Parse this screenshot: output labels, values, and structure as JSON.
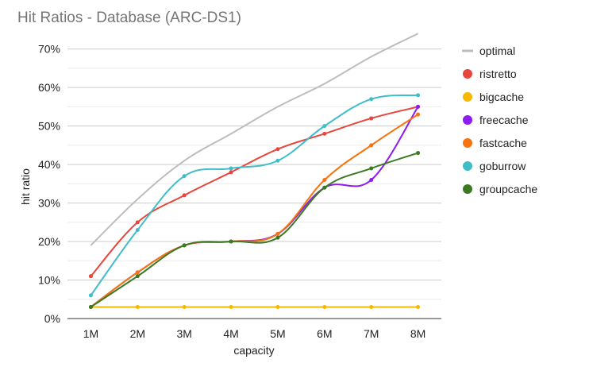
{
  "chart_data": {
    "type": "line",
    "title": "Hit Ratios - Database (ARC-DS1)",
    "xlabel": "capacity",
    "ylabel": "hit ratio",
    "categories": [
      "1M",
      "2M",
      "3M",
      "4M",
      "5M",
      "6M",
      "7M",
      "8M"
    ],
    "ylim": [
      0,
      72
    ],
    "yticks": [
      "0%",
      "10%",
      "20%",
      "30%",
      "40%",
      "50%",
      "60%",
      "70%"
    ],
    "ytick_values": [
      0,
      10,
      20,
      30,
      40,
      50,
      60,
      70
    ],
    "grid": true,
    "legend_position": "right",
    "series": [
      {
        "name": "optimal",
        "color": "#bdbdbd",
        "markers": false,
        "values": [
          19,
          31,
          41,
          48,
          55,
          61,
          68,
          74
        ]
      },
      {
        "name": "ristretto",
        "color": "#e8453c",
        "markers": true,
        "values": [
          11,
          25,
          32,
          38,
          44,
          48,
          52,
          55
        ]
      },
      {
        "name": "bigcache",
        "color": "#f6b900",
        "markers": true,
        "values": [
          3,
          3,
          3,
          3,
          3,
          3,
          3,
          3
        ]
      },
      {
        "name": "freecache",
        "color": "#8e1bf0",
        "markers": true,
        "values": [
          3,
          12,
          19,
          20,
          22,
          34,
          36,
          55
        ]
      },
      {
        "name": "fastcache",
        "color": "#f7730e",
        "markers": true,
        "values": [
          3,
          12,
          19,
          20,
          22,
          36,
          45,
          53
        ]
      },
      {
        "name": "goburrow",
        "color": "#3fbdc8",
        "markers": true,
        "values": [
          6,
          23,
          37,
          39,
          41,
          50,
          57,
          58
        ]
      },
      {
        "name": "groupcache",
        "color": "#3b7a22",
        "markers": true,
        "values": [
          3,
          11,
          19,
          20,
          21,
          34,
          39,
          43
        ]
      }
    ]
  }
}
